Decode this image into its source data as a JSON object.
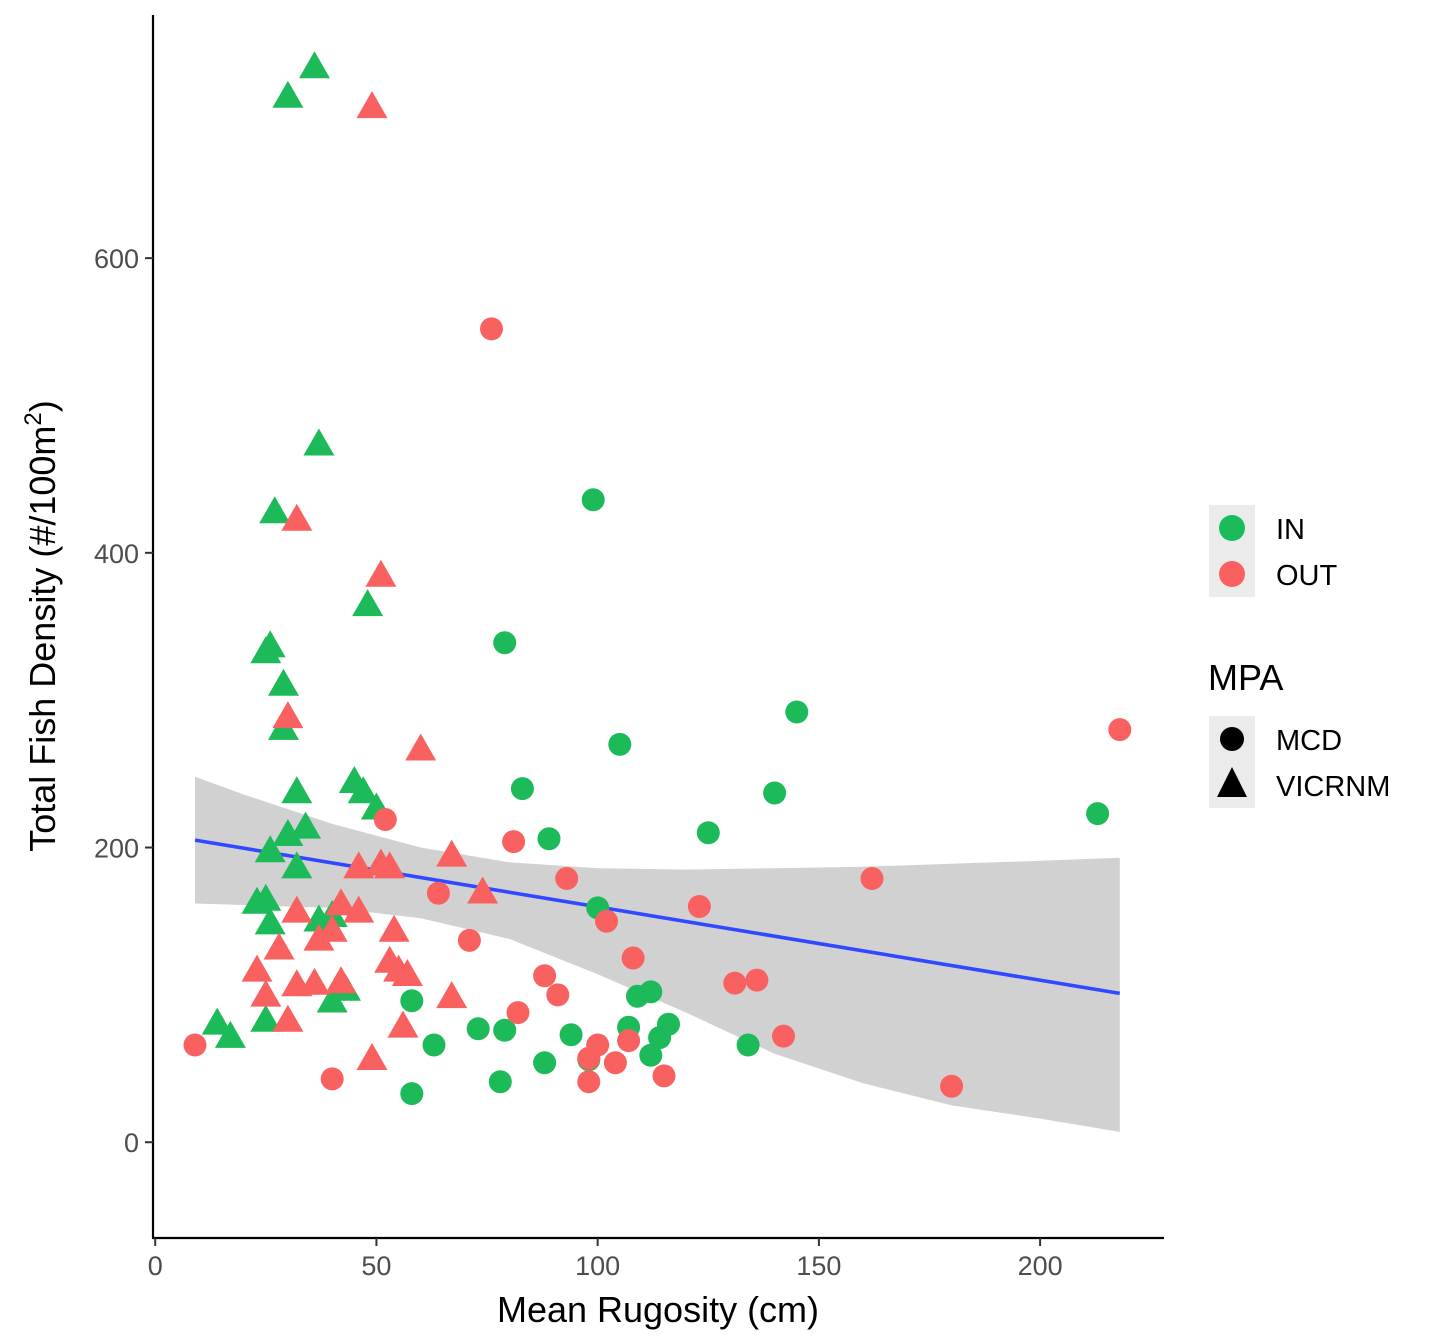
{
  "chart_data": {
    "type": "scatter",
    "xlabel": "Mean Rugosity (cm)",
    "ylabel": {
      "prefix": "Total Fish Density (#/100m",
      "superscript": "2",
      "suffix": ")"
    },
    "xlim": [
      -0.5,
      228
    ],
    "ylim": [
      -65,
      765
    ],
    "x_ticks": [
      0,
      50,
      100,
      150,
      200
    ],
    "y_ticks": [
      0,
      200,
      400,
      600
    ],
    "grid": false,
    "colors": {
      "IN": "#1dba5a",
      "OUT": "#f8615f",
      "trend": "#3049ff",
      "ribbon": "#c6c6c6"
    },
    "legend": {
      "position": "right",
      "color_title": "",
      "color_entries": [
        "IN",
        "OUT"
      ],
      "shape_title": "MPA",
      "shape_entries": [
        {
          "label": "MCD",
          "shape": "circle"
        },
        {
          "label": "VICRNM",
          "shape": "triangle"
        }
      ]
    },
    "series": [
      {
        "name": "IN",
        "shape": "triangle",
        "group": "VICRNM",
        "points": [
          [
            36,
            729
          ],
          [
            30,
            709
          ],
          [
            37,
            473
          ],
          [
            27,
            427
          ],
          [
            48,
            364
          ],
          [
            25,
            332
          ],
          [
            26,
            336
          ],
          [
            29,
            310
          ],
          [
            29,
            280
          ],
          [
            32,
            237
          ],
          [
            45,
            244
          ],
          [
            47,
            237
          ],
          [
            50,
            226
          ],
          [
            26,
            197
          ],
          [
            30,
            208
          ],
          [
            34,
            213
          ],
          [
            32,
            186
          ],
          [
            23,
            162
          ],
          [
            25,
            164
          ],
          [
            26,
            148
          ],
          [
            37,
            150
          ],
          [
            40,
            153
          ],
          [
            14,
            80
          ],
          [
            17,
            71
          ],
          [
            25,
            82
          ],
          [
            40,
            95
          ],
          [
            43,
            103
          ]
        ]
      },
      {
        "name": "OUT",
        "shape": "triangle",
        "group": "VICRNM",
        "points": [
          [
            49,
            702
          ],
          [
            32,
            422
          ],
          [
            51,
            384
          ],
          [
            30,
            288
          ],
          [
            60,
            266
          ],
          [
            46,
            186
          ],
          [
            51,
            188
          ],
          [
            53,
            186
          ],
          [
            67,
            194
          ],
          [
            74,
            169
          ],
          [
            42,
            161
          ],
          [
            46,
            156
          ],
          [
            32,
            156
          ],
          [
            37,
            137
          ],
          [
            40,
            143
          ],
          [
            28,
            131
          ],
          [
            54,
            143
          ],
          [
            23,
            116
          ],
          [
            25,
            99
          ],
          [
            32,
            106
          ],
          [
            36,
            107
          ],
          [
            42,
            108
          ],
          [
            53,
            122
          ],
          [
            55,
            116
          ],
          [
            57,
            113
          ],
          [
            67,
            98
          ],
          [
            30,
            82
          ],
          [
            56,
            78
          ],
          [
            49,
            56
          ]
        ]
      },
      {
        "name": "IN",
        "shape": "circle",
        "group": "MCD",
        "points": [
          [
            99,
            436
          ],
          [
            79,
            339
          ],
          [
            145,
            292
          ],
          [
            105,
            270
          ],
          [
            83,
            240
          ],
          [
            140,
            237
          ],
          [
            89,
            206
          ],
          [
            213,
            223
          ],
          [
            125,
            210
          ],
          [
            100,
            159
          ],
          [
            109,
            99
          ],
          [
            112,
            102
          ],
          [
            58,
            96
          ],
          [
            73,
            77
          ],
          [
            79,
            76
          ],
          [
            94,
            73
          ],
          [
            107,
            78
          ],
          [
            114,
            71
          ],
          [
            116,
            80
          ],
          [
            63,
            66
          ],
          [
            134,
            66
          ],
          [
            88,
            54
          ],
          [
            98,
            56
          ],
          [
            112,
            59
          ],
          [
            78,
            41
          ],
          [
            58,
            33
          ]
        ]
      },
      {
        "name": "OUT",
        "shape": "circle",
        "group": "MCD",
        "points": [
          [
            76,
            552
          ],
          [
            218,
            280
          ],
          [
            52,
            219
          ],
          [
            81,
            204
          ],
          [
            93,
            179
          ],
          [
            162,
            179
          ],
          [
            64,
            169
          ],
          [
            123,
            160
          ],
          [
            102,
            150
          ],
          [
            71,
            137
          ],
          [
            108,
            125
          ],
          [
            131,
            108
          ],
          [
            136,
            110
          ],
          [
            88,
            113
          ],
          [
            91,
            100
          ],
          [
            82,
            88
          ],
          [
            142,
            72
          ],
          [
            107,
            69
          ],
          [
            100,
            66
          ],
          [
            9,
            66
          ],
          [
            98,
            57
          ],
          [
            104,
            54
          ],
          [
            115,
            45
          ],
          [
            40,
            43
          ],
          [
            98,
            41
          ],
          [
            180,
            38
          ]
        ]
      }
    ],
    "trend_line": [
      [
        9,
        205
      ],
      [
        218,
        101
      ]
    ],
    "confidence_band": {
      "x": [
        9,
        20,
        40,
        60,
        80,
        100,
        120,
        140,
        160,
        180,
        200,
        218
      ],
      "upper": [
        248,
        236,
        216,
        200,
        190,
        186,
        185,
        186,
        187,
        189,
        191,
        193
      ],
      "lower": [
        162,
        161,
        159,
        152,
        138,
        114,
        88,
        60,
        40,
        25,
        16,
        7
      ]
    }
  }
}
